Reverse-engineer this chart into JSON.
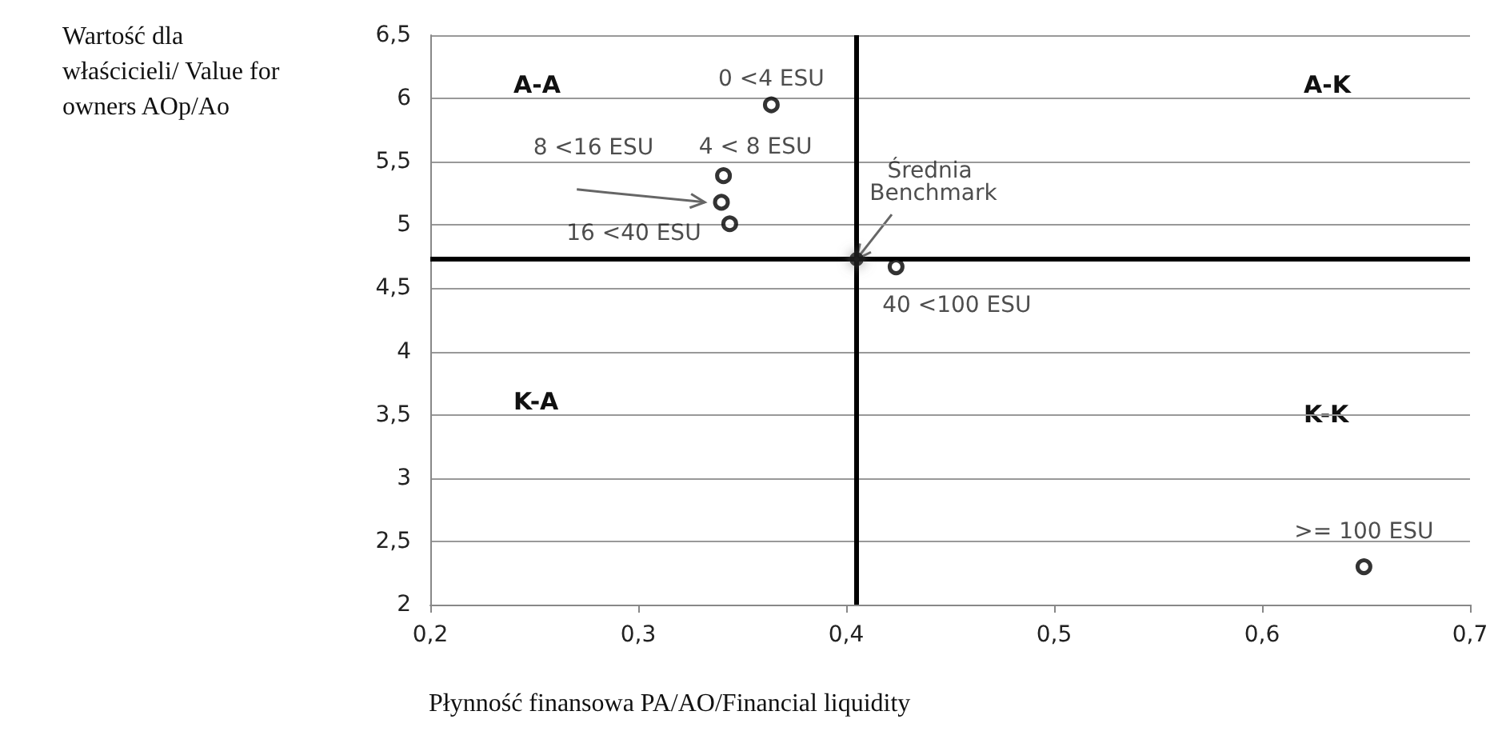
{
  "chart_data": {
    "type": "scatter",
    "xlabel": "Płynność finansowa PA/AO/Financial liquidity",
    "ylabel": "Wartość dla właścicieli/ Value for owners AOp/Ao",
    "series": [
      {
        "type": "scatter",
        "x": [
          0.364,
          0.341,
          0.34,
          0.344,
          0.424,
          0.649
        ],
        "values": [
          5.95,
          5.39,
          5.18,
          5.01,
          4.67,
          2.3
        ],
        "color": "#000000",
        "marker": "circle",
        "value_labels": [
          "0 <4 ESU",
          "4 < 8 ESU",
          "8 <16 ESU",
          "16 <40 ESU",
          "40 <100 ESU",
          ">= 100 ESU"
        ]
      },
      {
        "type": "scatter",
        "x": [
          0.405
        ],
        "values": [
          4.73
        ],
        "color": "#000000",
        "marker": "circle",
        "value_labels": [
          "Średnia Benchmark"
        ]
      }
    ],
    "annotations": [
      "A-A",
      "A-K",
      "K-A",
      "K-K"
    ],
    "ref_lines": [
      {
        "axis": "x",
        "value": 0.405,
        "color": "#000000"
      },
      {
        "axis": "y",
        "value": 4.73,
        "color": "#000000"
      }
    ],
    "xlim": [
      0.2,
      0.7
    ],
    "xticks": [
      {
        "value": 0.2,
        "label": "0,2"
      },
      {
        "value": 0.3,
        "label": "0,3"
      },
      {
        "value": 0.4,
        "label": "0,4"
      },
      {
        "value": 0.5,
        "label": "0,5"
      },
      {
        "value": 0.6,
        "label": "0,6"
      },
      {
        "value": 0.7,
        "label": "0,7"
      }
    ],
    "ylim": [
      2,
      6.5
    ],
    "yticks": [
      2,
      {
        "value": 2.5,
        "label": "2,5"
      },
      3,
      {
        "value": 3.5,
        "label": "3,5"
      },
      4,
      {
        "value": 4.5,
        "label": "4,5"
      },
      5,
      {
        "value": 5.5,
        "label": "5,5"
      },
      6,
      {
        "value": 6.5,
        "label": "6,5"
      }
    ],
    "grid": "y"
  }
}
